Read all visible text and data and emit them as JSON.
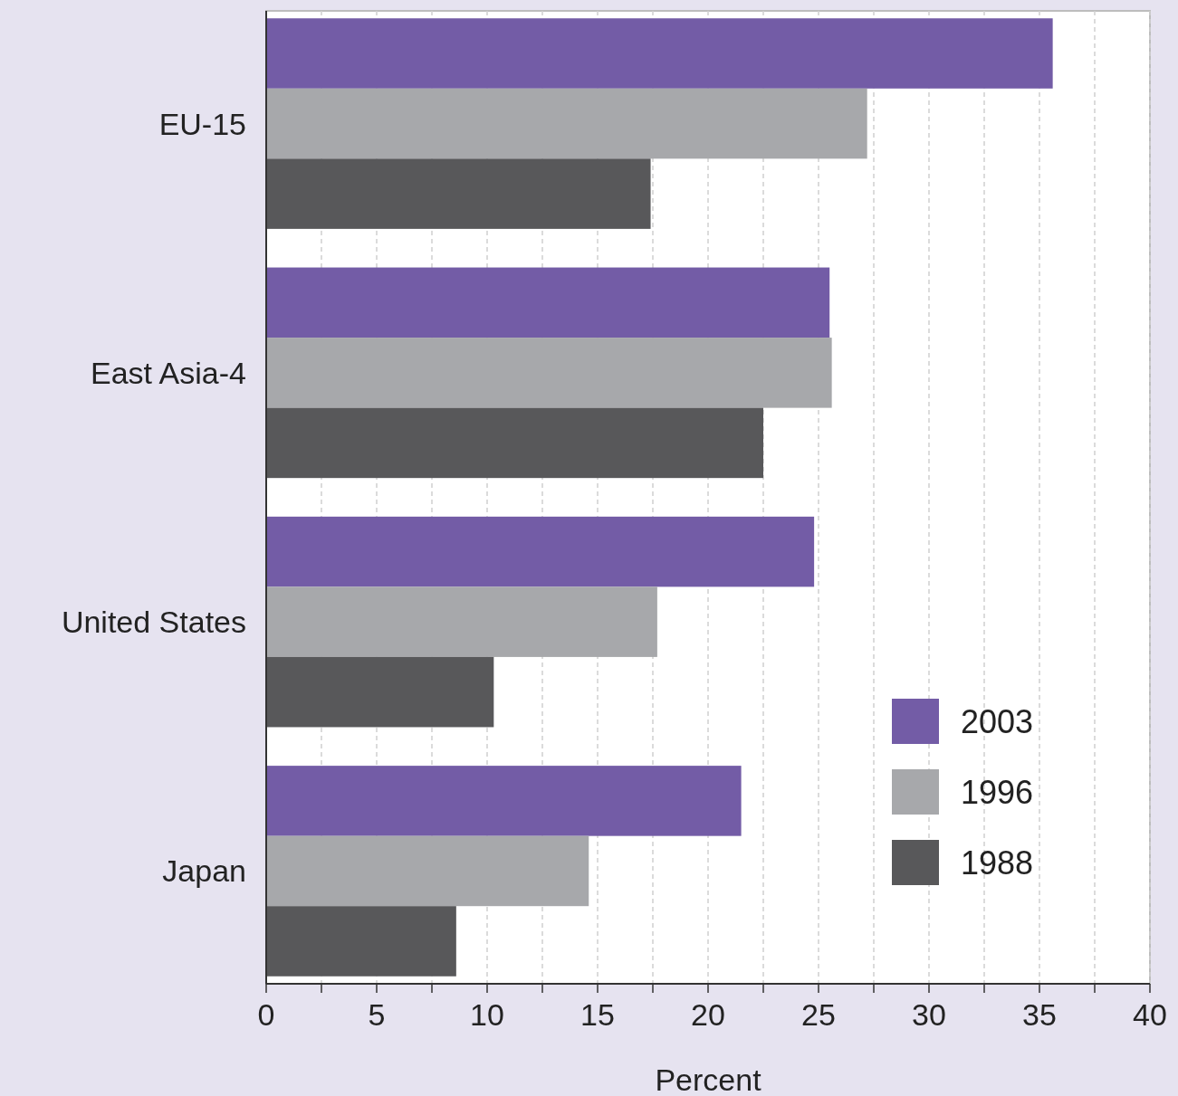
{
  "chart_data": {
    "type": "bar",
    "orientation": "horizontal",
    "xlabel": "Percent",
    "categories": [
      "EU-15",
      "East Asia-4",
      "United States",
      "Japan"
    ],
    "series": [
      {
        "name": "2003",
        "color": "#735ca6",
        "values": [
          35.6,
          25.5,
          24.8,
          21.5
        ]
      },
      {
        "name": "1996",
        "color": "#a7a8ab",
        "values": [
          27.2,
          25.6,
          17.7,
          14.6
        ]
      },
      {
        "name": "1988",
        "color": "#58585a",
        "values": [
          17.4,
          22.5,
          10.3,
          8.6
        ]
      }
    ],
    "xlim": [
      0,
      40
    ],
    "xticks": [
      0,
      {
        "value": 2.5,
        "label": null
      },
      5,
      {
        "value": 7.5,
        "label": null
      },
      10,
      {
        "value": 12.5,
        "label": null
      },
      15,
      {
        "value": 17.5,
        "label": null
      },
      20,
      {
        "value": 22.5,
        "label": null
      },
      25,
      {
        "value": 27.5,
        "label": null
      },
      30,
      {
        "value": 32.5,
        "label": null
      },
      35,
      {
        "value": 37.5,
        "label": null
      },
      40
    ],
    "grid": "x",
    "legend": "bottom right"
  }
}
